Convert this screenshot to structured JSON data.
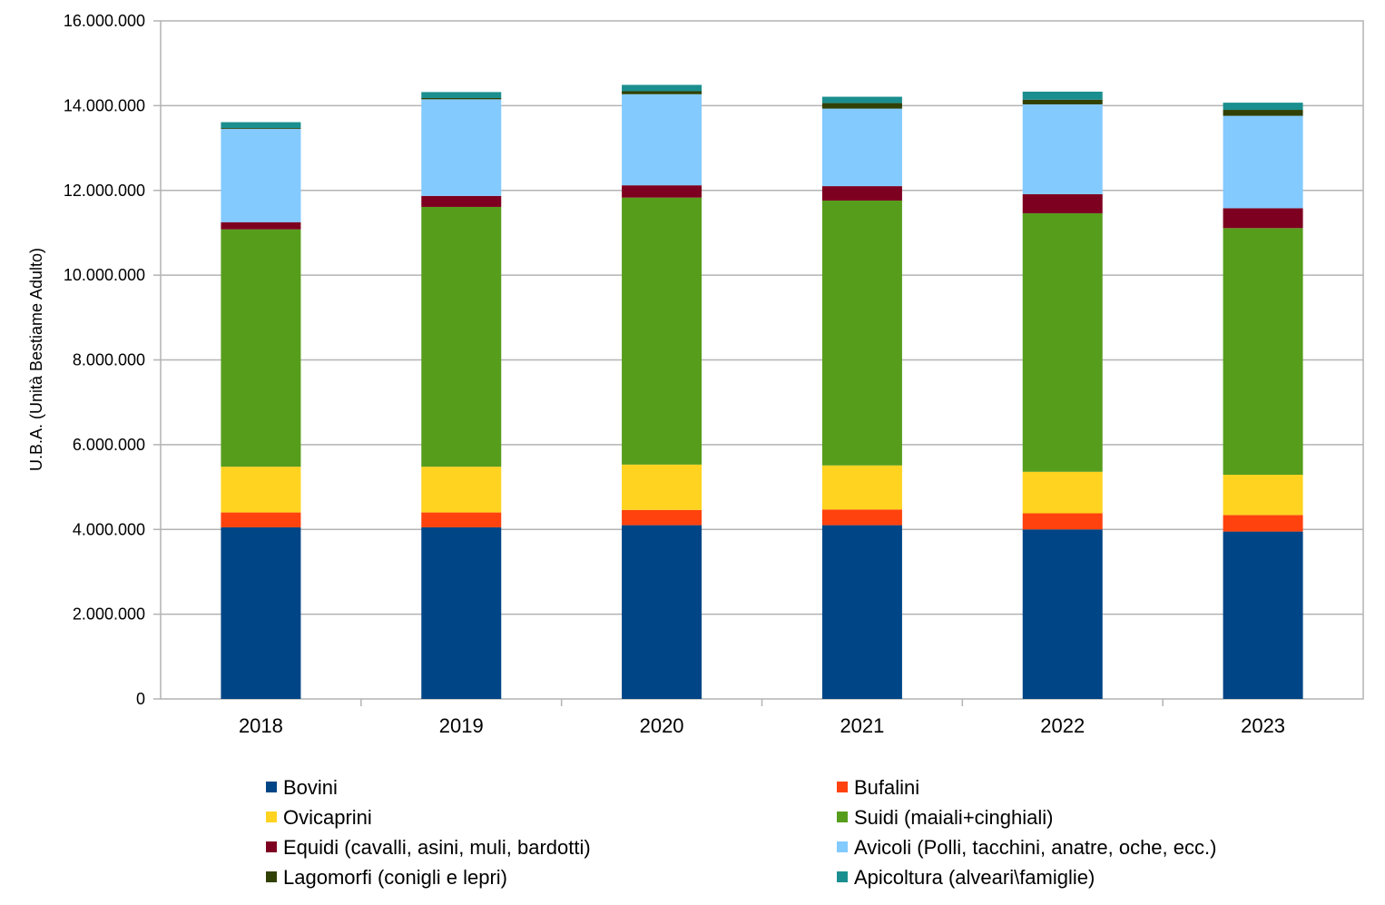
{
  "chart_data": {
    "type": "bar",
    "stacked": true,
    "title": "",
    "xlabel": "",
    "ylabel": "U.B.A. (Unità Bestiame Adulto)",
    "ylim": [
      0,
      16000000
    ],
    "yticks": [
      0,
      2000000,
      4000000,
      6000000,
      8000000,
      10000000,
      12000000,
      14000000,
      16000000
    ],
    "ytick_labels": [
      "0",
      "2.000.000",
      "4.000.000",
      "6.000.000",
      "8.000.000",
      "10.000.000",
      "12.000.000",
      "14.000.000",
      "16.000.000"
    ],
    "grid": true,
    "legend_position": "bottom",
    "categories": [
      "2018",
      "2019",
      "2020",
      "2021",
      "2022",
      "2023"
    ],
    "series": [
      {
        "name": "Bovini",
        "color": "#004586",
        "values": [
          4050000,
          4050000,
          4100000,
          4100000,
          4000000,
          3950000
        ]
      },
      {
        "name": "Bufalini",
        "color": "#ff420e",
        "values": [
          350000,
          350000,
          360000,
          370000,
          380000,
          390000
        ]
      },
      {
        "name": "Ovicaprini",
        "color": "#ffd320",
        "values": [
          1080000,
          1080000,
          1070000,
          1040000,
          980000,
          950000
        ]
      },
      {
        "name": "Suidi (maiali+cinghiali)",
        "color": "#579d1c",
        "values": [
          5600000,
          6130000,
          6300000,
          6250000,
          6100000,
          5820000
        ]
      },
      {
        "name": "Equidi (cavalli, asini, muli, bardotti)",
        "color": "#7e0021",
        "values": [
          170000,
          260000,
          290000,
          340000,
          450000,
          470000
        ]
      },
      {
        "name": "Avicoli (Polli, tacchini, anatre, oche, ecc.)",
        "color": "#83caff",
        "values": [
          2200000,
          2280000,
          2150000,
          1830000,
          2120000,
          2180000
        ]
      },
      {
        "name": "Lagomorfi (conigli e lepri)",
        "color": "#314004",
        "values": [
          20000,
          30000,
          70000,
          130000,
          110000,
          140000
        ]
      },
      {
        "name": "Apicoltura (alveari\\famiglie)",
        "color": "#1b8f8f",
        "values": [
          140000,
          140000,
          150000,
          150000,
          190000,
          170000
        ]
      }
    ]
  }
}
